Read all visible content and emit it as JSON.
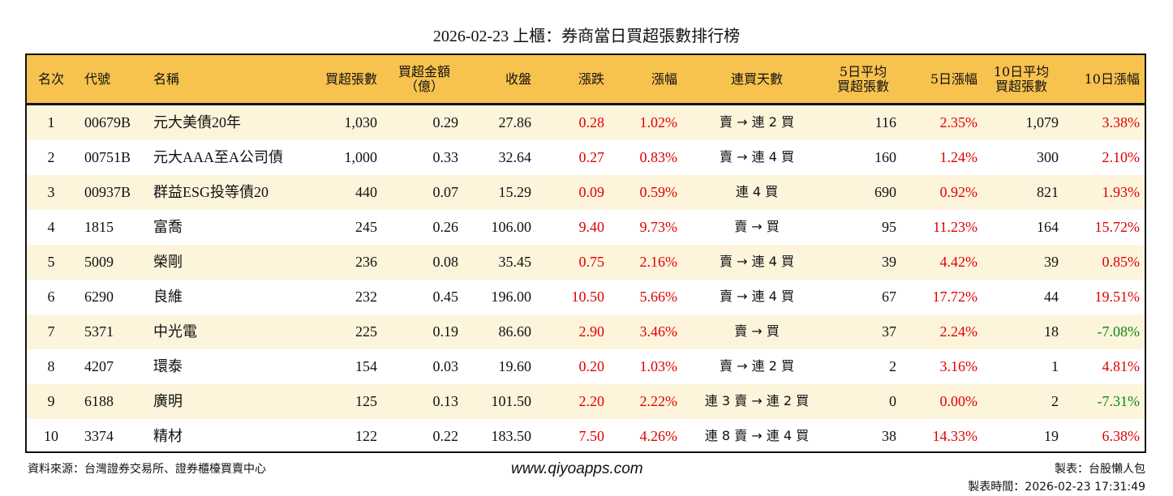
{
  "title": "2026-02-23 上櫃：券商當日買超張數排行榜",
  "headers": [
    "名次",
    "代號",
    "名稱",
    "買超張數",
    "買超金額\n（億）",
    "收盤",
    "漲跌",
    "漲幅",
    "連買天數",
    "5日平均\n買超張數",
    "5日漲幅",
    "10日平均\n買超張數",
    "10日漲幅"
  ],
  "colors": {
    "header_bg": "#f8c24e",
    "row_alt_bg": "#fdf4dc",
    "up": "#e00000",
    "down": "#0a8a0a"
  },
  "rows": [
    [
      "1",
      "00679B",
      "元大美債20年",
      "1,030",
      "0.29",
      "27.86",
      "0.28",
      "1.02%",
      "賣 → 連 2 買",
      "116",
      "2.35%",
      "1,079",
      "3.38%"
    ],
    [
      "2",
      "00751B",
      "元大AAA至A公司債",
      "1,000",
      "0.33",
      "32.64",
      "0.27",
      "0.83%",
      "賣 → 連 4 買",
      "160",
      "1.24%",
      "300",
      "2.10%"
    ],
    [
      "3",
      "00937B",
      "群益ESG投等債20",
      "440",
      "0.07",
      "15.29",
      "0.09",
      "0.59%",
      "連 4 買",
      "690",
      "0.92%",
      "821",
      "1.93%"
    ],
    [
      "4",
      "1815",
      "富喬",
      "245",
      "0.26",
      "106.00",
      "9.40",
      "9.73%",
      "賣 → 買",
      "95",
      "11.23%",
      "164",
      "15.72%"
    ],
    [
      "5",
      "5009",
      "榮剛",
      "236",
      "0.08",
      "35.45",
      "0.75",
      "2.16%",
      "賣 → 連 4 買",
      "39",
      "4.42%",
      "39",
      "0.85%"
    ],
    [
      "6",
      "6290",
      "良維",
      "232",
      "0.45",
      "196.00",
      "10.50",
      "5.66%",
      "賣 → 連 4 買",
      "67",
      "17.72%",
      "44",
      "19.51%"
    ],
    [
      "7",
      "5371",
      "中光電",
      "225",
      "0.19",
      "86.60",
      "2.90",
      "3.46%",
      "賣 → 買",
      "37",
      "2.24%",
      "18",
      "-7.08%"
    ],
    [
      "8",
      "4207",
      "環泰",
      "154",
      "0.03",
      "19.60",
      "0.20",
      "1.03%",
      "賣 → 連 2 買",
      "2",
      "3.16%",
      "1",
      "4.81%"
    ],
    [
      "9",
      "6188",
      "廣明",
      "125",
      "0.13",
      "101.50",
      "2.20",
      "2.22%",
      "連 3 賣 → 連 2 買",
      "0",
      "0.00%",
      "2",
      "-7.31%"
    ],
    [
      "10",
      "3374",
      "精材",
      "122",
      "0.22",
      "183.50",
      "7.50",
      "4.26%",
      "連 8 賣 → 連 4 買",
      "38",
      "14.33%",
      "19",
      "6.38%"
    ]
  ],
  "footer": {
    "source": "資料來源：台灣證券交易所、證券櫃檯買賣中心",
    "url": "www.qiyoapps.com",
    "author": "製表：台股懶人包",
    "time": "製表時間：2026-02-23 17:31:49"
  }
}
